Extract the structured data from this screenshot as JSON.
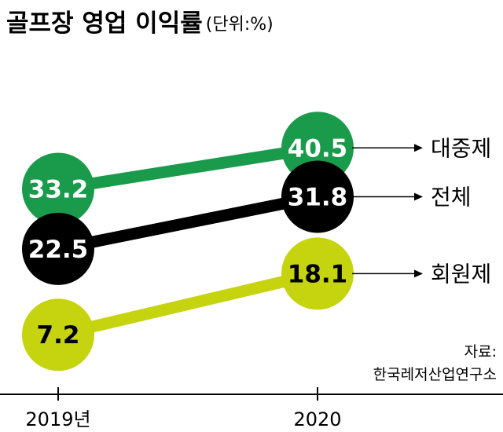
{
  "chart_data": {
    "type": "line",
    "title": "골프장 영업 이익률",
    "unit_label": "(단위:%)",
    "x": [
      "2019년",
      "2020"
    ],
    "series": [
      {
        "name": "대중제",
        "values": [
          33.2,
          40.5
        ],
        "value_labels": [
          "33.2",
          "40.5"
        ],
        "color": "#1a9b4b"
      },
      {
        "name": "전체",
        "values": [
          22.5,
          31.8
        ],
        "value_labels": [
          "22.5",
          "31.8"
        ],
        "color": "#000000"
      },
      {
        "name": "회원제",
        "values": [
          7.2,
          18.1
        ],
        "value_labels": [
          "7.2",
          "18.1"
        ],
        "color": "#c6d30f"
      }
    ],
    "ylim": [
      0,
      45
    ],
    "grid": false,
    "source_label": "자료:",
    "source_name": "한국레저산업연구소"
  }
}
